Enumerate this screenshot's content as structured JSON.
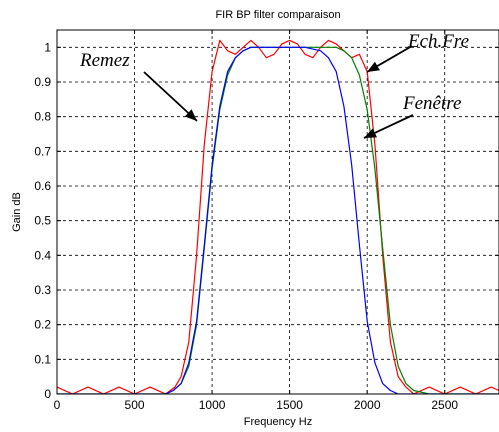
{
  "chart_data": {
    "type": "line",
    "title": "FIR BP filter comparaison",
    "xlabel": "Frequency Hz",
    "ylabel": "Gain dB",
    "xlim": [
      0,
      2850
    ],
    "ylim": [
      0,
      1.05
    ],
    "xticks": [
      0,
      500,
      1000,
      1500,
      2000,
      2500
    ],
    "yticks": [
      0,
      0.1,
      0.2,
      0.3,
      0.4,
      0.5,
      0.6,
      0.7,
      0.8,
      0.9,
      1
    ],
    "ytick_labels": [
      "0",
      "0.1",
      "0.2",
      "0.3",
      "0.4",
      "0.5",
      "0.6",
      "0.7",
      "0.8",
      "0.9",
      "1"
    ],
    "grid": true,
    "grid_style": "dashed",
    "series": [
      {
        "name": "Remez",
        "color": "#ff0000",
        "x": [
          0,
          100,
          200,
          300,
          400,
          500,
          600,
          700,
          760,
          800,
          850,
          900,
          950,
          1000,
          1050,
          1100,
          1150,
          1200,
          1250,
          1300,
          1350,
          1400,
          1450,
          1500,
          1550,
          1600,
          1650,
          1700,
          1750,
          1800,
          1850,
          1900,
          1950,
          2000,
          2050,
          2100,
          2150,
          2200,
          2250,
          2300,
          2400,
          2500,
          2600,
          2700,
          2800,
          2850
        ],
        "y": [
          0.02,
          0.0,
          0.02,
          0.0,
          0.02,
          0.0,
          0.02,
          0.0,
          0.02,
          0.05,
          0.15,
          0.4,
          0.72,
          0.93,
          1.02,
          0.99,
          0.98,
          1.0,
          1.02,
          1.0,
          0.97,
          0.98,
          1.01,
          1.02,
          1.01,
          0.98,
          0.97,
          1.0,
          1.02,
          1.01,
          0.99,
          0.97,
          0.98,
          0.93,
          0.72,
          0.4,
          0.15,
          0.05,
          0.02,
          0.0,
          0.02,
          0.0,
          0.02,
          0.0,
          0.02,
          0.01
        ]
      },
      {
        "name": "Ech.Fre",
        "color": "#008000",
        "x": [
          0,
          400,
          700,
          750,
          800,
          850,
          900,
          950,
          1000,
          1050,
          1100,
          1150,
          1200,
          1250,
          1300,
          1400,
          1500,
          1600,
          1700,
          1800,
          1850,
          1900,
          1950,
          2000,
          2050,
          2100,
          2150,
          2200,
          2250,
          2300,
          2400,
          2850
        ],
        "y": [
          0,
          0,
          0.0,
          0.01,
          0.03,
          0.08,
          0.2,
          0.42,
          0.65,
          0.82,
          0.92,
          0.97,
          0.99,
          1.0,
          1.0,
          1.0,
          1.0,
          1.0,
          1.0,
          1.0,
          0.99,
          0.97,
          0.92,
          0.82,
          0.65,
          0.42,
          0.2,
          0.08,
          0.03,
          0.01,
          0.0,
          0
        ]
      },
      {
        "name": "Fenêtre",
        "color": "#0000ff",
        "x": [
          0,
          400,
          700,
          750,
          800,
          850,
          900,
          950,
          1000,
          1050,
          1100,
          1150,
          1200,
          1250,
          1300,
          1400,
          1500,
          1600,
          1700,
          1750,
          1800,
          1850,
          1900,
          1950,
          2000,
          2050,
          2100,
          2150,
          2200,
          2250,
          2300,
          2850
        ],
        "y": [
          0,
          0,
          0.0,
          0.01,
          0.03,
          0.09,
          0.21,
          0.43,
          0.66,
          0.83,
          0.93,
          0.97,
          0.99,
          1.0,
          1.0,
          1.0,
          1.0,
          1.0,
          0.99,
          0.97,
          0.93,
          0.83,
          0.66,
          0.43,
          0.21,
          0.09,
          0.03,
          0.01,
          0.0,
          0.0,
          0.0,
          0
        ]
      }
    ],
    "annotations": [
      {
        "text": "Remez",
        "target_series": "Remez"
      },
      {
        "text": "Ech.Fre",
        "target_series": "Ech.Fre"
      },
      {
        "text": "Fenêtre",
        "target_series": "Fenêtre"
      }
    ]
  }
}
